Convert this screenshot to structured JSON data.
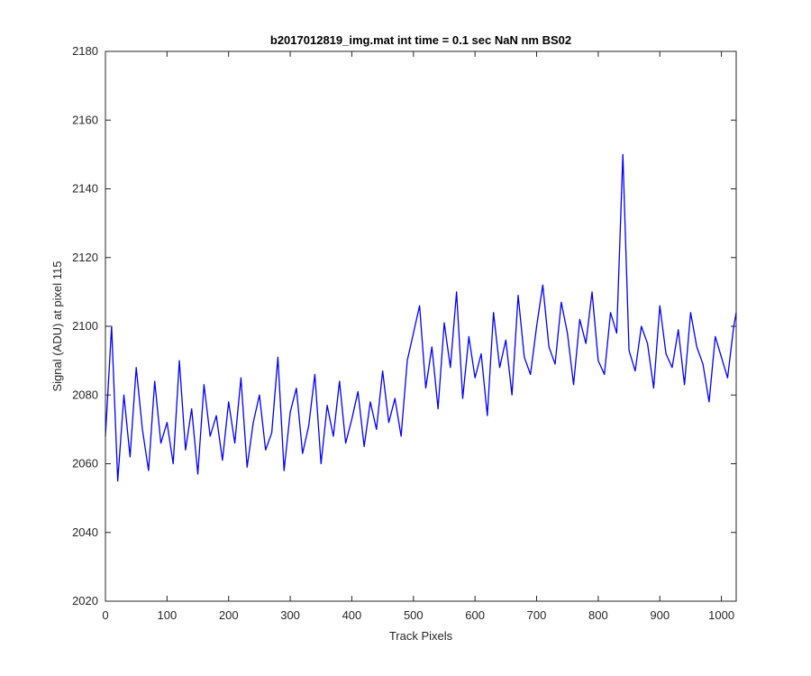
{
  "chart_data": {
    "type": "line",
    "title": "b2017012819_img.mat int time = 0.1 sec  NaN nm BS02",
    "xlabel": "Track Pixels",
    "ylabel": "Signal (ADU) at pixel 115",
    "xlim": [
      0,
      1024
    ],
    "ylim": [
      2020,
      2180
    ],
    "xticks": [
      0,
      100,
      200,
      300,
      400,
      500,
      600,
      700,
      800,
      900,
      1000
    ],
    "yticks": [
      2020,
      2040,
      2060,
      2080,
      2100,
      2120,
      2140,
      2160,
      2180
    ],
    "grid": false,
    "legend": "none",
    "series": [
      {
        "color": "#0000ff",
        "x": [
          0,
          10,
          20,
          30,
          40,
          50,
          60,
          70,
          80,
          90,
          100,
          110,
          120,
          130,
          140,
          150,
          160,
          170,
          180,
          190,
          200,
          210,
          220,
          230,
          240,
          250,
          260,
          270,
          280,
          290,
          300,
          310,
          320,
          330,
          340,
          350,
          360,
          370,
          380,
          390,
          400,
          410,
          420,
          430,
          440,
          450,
          460,
          470,
          480,
          490,
          500,
          510,
          520,
          530,
          540,
          550,
          560,
          570,
          580,
          590,
          600,
          610,
          620,
          630,
          640,
          650,
          660,
          670,
          680,
          690,
          700,
          710,
          720,
          730,
          740,
          750,
          760,
          770,
          780,
          790,
          800,
          810,
          820,
          830,
          840,
          850,
          860,
          870,
          880,
          890,
          900,
          910,
          920,
          930,
          940,
          950,
          960,
          970,
          980,
          990,
          1000,
          1010,
          1020,
          1024
        ],
        "y": [
          2068,
          2100,
          2055,
          2080,
          2062,
          2088,
          2070,
          2058,
          2084,
          2066,
          2072,
          2060,
          2090,
          2064,
          2076,
          2057,
          2083,
          2068,
          2074,
          2061,
          2078,
          2066,
          2085,
          2059,
          2072,
          2080,
          2064,
          2069,
          2091,
          2058,
          2075,
          2082,
          2063,
          2071,
          2086,
          2060,
          2077,
          2068,
          2084,
          2066,
          2073,
          2081,
          2065,
          2078,
          2070,
          2087,
          2072,
          2079,
          2068,
          2090,
          2098,
          2106,
          2082,
          2094,
          2076,
          2101,
          2088,
          2110,
          2079,
          2097,
          2085,
          2092,
          2074,
          2104,
          2088,
          2096,
          2080,
          2109,
          2091,
          2086,
          2100,
          2112,
          2094,
          2089,
          2107,
          2098,
          2083,
          2102,
          2095,
          2110,
          2090,
          2086,
          2104,
          2098,
          2150,
          2093,
          2087,
          2100,
          2095,
          2082,
          2106,
          2092,
          2088,
          2099,
          2083,
          2104,
          2094,
          2089,
          2078,
          2097,
          2091,
          2085,
          2100,
          2104
        ]
      }
    ]
  }
}
